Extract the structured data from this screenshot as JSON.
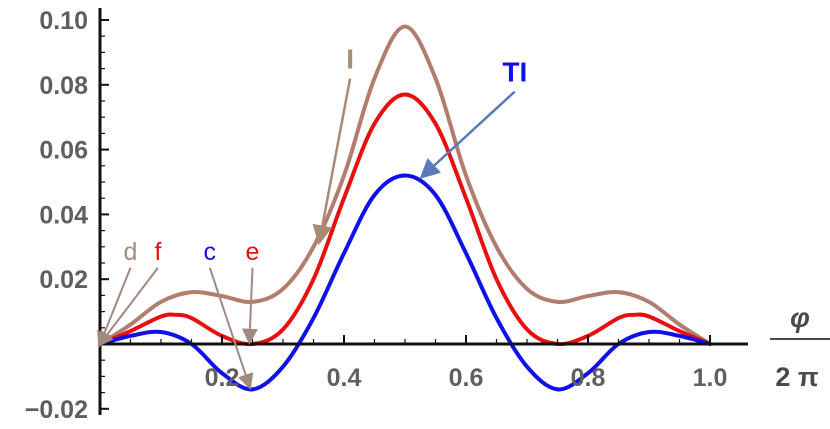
{
  "chart_data": {
    "type": "line",
    "title": "",
    "xlabel": {
      "numerator": "φ",
      "denominator": "2 π"
    },
    "ylabel": "",
    "xlim": [
      0,
      1.0
    ],
    "ylim": [
      -0.02,
      0.1
    ],
    "x_ticks": [
      "0.2",
      "0.4",
      "0.6",
      "0.8",
      "1.0"
    ],
    "y_ticks": [
      "−0.02",
      "0.02",
      "0.04",
      "0.06",
      "0.08",
      "0.10"
    ],
    "grid": false,
    "series": [
      {
        "name": "I",
        "color": "#b07d6e",
        "x": [
          0.0,
          0.05,
          0.1,
          0.15,
          0.2,
          0.25,
          0.3,
          0.35,
          0.4,
          0.45,
          0.5,
          0.55,
          0.6,
          0.65,
          0.7,
          0.75,
          0.8,
          0.85,
          0.9,
          0.95,
          1.0
        ],
        "y": [
          0.0,
          0.006,
          0.013,
          0.016,
          0.0148,
          0.013,
          0.017,
          0.03,
          0.052,
          0.082,
          0.098,
          0.082,
          0.052,
          0.03,
          0.017,
          0.013,
          0.0148,
          0.016,
          0.013,
          0.006,
          0.0
        ]
      },
      {
        "name": "",
        "color": "#e8100e",
        "x": [
          0.0,
          0.05,
          0.1,
          0.125,
          0.15,
          0.2,
          0.25,
          0.3,
          0.35,
          0.4,
          0.45,
          0.5,
          0.55,
          0.6,
          0.65,
          0.7,
          0.75,
          0.8,
          0.85,
          0.875,
          0.9,
          0.95,
          1.0
        ],
        "y": [
          0.0,
          0.004,
          0.0085,
          0.009,
          0.008,
          0.0025,
          0.0,
          0.0045,
          0.02,
          0.045,
          0.068,
          0.077,
          0.068,
          0.045,
          0.02,
          0.0045,
          0.0,
          0.0025,
          0.008,
          0.009,
          0.0085,
          0.004,
          0.0
        ]
      },
      {
        "name": "TI",
        "color": "#1010e8",
        "x": [
          0.0,
          0.05,
          0.1,
          0.15,
          0.2,
          0.25,
          0.3,
          0.35,
          0.4,
          0.45,
          0.5,
          0.55,
          0.6,
          0.65,
          0.7,
          0.75,
          0.8,
          0.85,
          0.9,
          0.95,
          1.0
        ],
        "y": [
          0.0,
          0.0025,
          0.0037,
          0.0,
          -0.009,
          -0.014,
          -0.007,
          0.008,
          0.028,
          0.046,
          0.052,
          0.046,
          0.028,
          0.008,
          -0.007,
          -0.014,
          -0.009,
          0.0,
          0.0037,
          0.0025,
          0.0
        ]
      }
    ],
    "annotations": [
      {
        "text": "I",
        "color": "#a98a74",
        "size": "big",
        "label_at": [
          0.41,
          0.085
        ],
        "arrow_to": [
          0.36,
          0.032
        ]
      },
      {
        "text": "TI",
        "color": "#1010e8",
        "size": "big",
        "label_at": [
          0.68,
          0.081
        ],
        "arrow_to": [
          0.53,
          0.052
        ]
      },
      {
        "text": "d",
        "color": "#a98a74",
        "size": "small",
        "label_at": [
          0.05,
          0.026
        ],
        "arrow_to": [
          0.0,
          0.0
        ]
      },
      {
        "text": "f",
        "color": "#e8100e",
        "size": "small",
        "label_at": [
          0.095,
          0.026
        ],
        "arrow_to": [
          0.0,
          0.0
        ]
      },
      {
        "text": "c",
        "color": "#1010e8",
        "size": "small",
        "label_at": [
          0.18,
          0.026
        ],
        "arrow_to": [
          0.245,
          -0.013
        ]
      },
      {
        "text": "e",
        "color": "#e8100e",
        "size": "small",
        "label_at": [
          0.25,
          0.026
        ],
        "arrow_to": [
          0.245,
          0.001
        ]
      }
    ]
  }
}
